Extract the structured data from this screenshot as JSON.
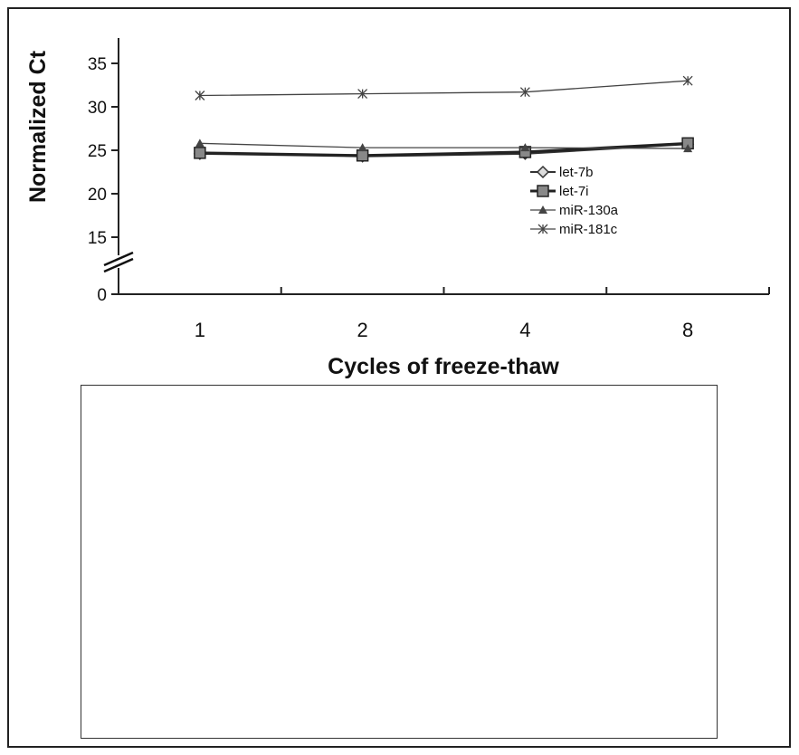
{
  "chart_data": {
    "type": "line",
    "xlabel": "Cycles of freeze-thaw",
    "ylabel": "Normalized Ct",
    "categories": [
      "1",
      "2",
      "4",
      "8"
    ],
    "y_ticks": [
      "0",
      "15",
      "20",
      "25",
      "30",
      "35"
    ],
    "ylim": [
      10,
      37
    ],
    "axis_break": true,
    "grid": false,
    "legend": "right-inside",
    "series": [
      {
        "name": "let-7b",
        "marker": "diamond",
        "color": "#333333",
        "values": [
          24.6,
          24.3,
          24.6,
          25.7
        ]
      },
      {
        "name": "let-7i",
        "marker": "square",
        "color": "#222222",
        "values": [
          24.7,
          24.4,
          24.8,
          25.8
        ]
      },
      {
        "name": "miR-130a",
        "marker": "triangle",
        "color": "#444444",
        "values": [
          25.8,
          25.3,
          25.3,
          25.2
        ]
      },
      {
        "name": "miR-181c",
        "marker": "star",
        "color": "#444444",
        "values": [
          31.3,
          31.5,
          31.7,
          33.0
        ]
      }
    ]
  }
}
